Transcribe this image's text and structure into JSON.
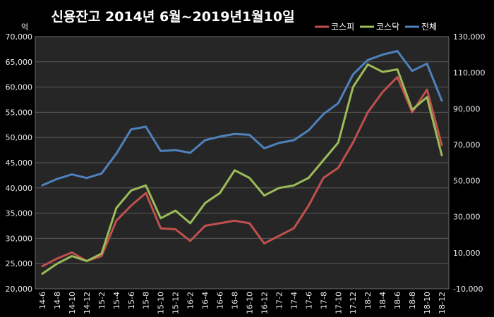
{
  "chart_data": {
    "type": "line",
    "title": "신용잔고 2014년 6월~2019년1월10일",
    "y_unit_label": "억",
    "left_axis": {
      "ylim": [
        20000,
        70000
      ],
      "ticks": [
        "20,000",
        "25,000",
        "30,000",
        "35,000",
        "40,000",
        "45,000",
        "50,000",
        "55,000",
        "60,000",
        "65,000",
        "70,000"
      ]
    },
    "right_axis": {
      "ylim": [
        -10000,
        130000
      ],
      "ticks": [
        "-10,000",
        "10,000",
        "30,000",
        "50,000",
        "70,000",
        "90,000",
        "110,000",
        "130,000"
      ]
    },
    "grid": true,
    "legend_position": "top-right",
    "categories": [
      "14-6",
      "14-8",
      "14-10",
      "14-12",
      "15-2",
      "15-4",
      "15-6",
      "15-8",
      "15-10",
      "15-12",
      "16-2",
      "16-4",
      "16-6",
      "16-8",
      "16-10",
      "16-12",
      "17-2",
      "17-4",
      "17-6",
      "17-8",
      "17-10",
      "17-12",
      "18-2",
      "18-4",
      "18-6",
      "18-8",
      "18-10",
      "18-12"
    ],
    "series": [
      {
        "name": "코스피",
        "axis": "left",
        "color": "#c0504d",
        "values": [
          24500,
          26000,
          27200,
          25500,
          26500,
          33500,
          36500,
          39000,
          32000,
          31800,
          29500,
          32500,
          33000,
          33500,
          33000,
          29000,
          30500,
          32000,
          36500,
          42000,
          44000,
          49000,
          55000,
          59000,
          62000,
          55000,
          59500,
          48500
        ]
      },
      {
        "name": "코스닥",
        "axis": "left",
        "color": "#9bbb59",
        "values": [
          23000,
          25000,
          26500,
          25500,
          27000,
          36000,
          39500,
          40500,
          34000,
          35500,
          33000,
          37000,
          39000,
          43500,
          42000,
          38500,
          40000,
          40500,
          42000,
          45500,
          49000,
          60000,
          64500,
          63000,
          63500,
          55500,
          58000,
          46500
        ]
      },
      {
        "name": "전체",
        "axis": "right",
        "color": "#4f81bd",
        "values": [
          47500,
          51000,
          53500,
          51500,
          54000,
          65000,
          78500,
          80000,
          66500,
          67000,
          65500,
          72500,
          74500,
          76000,
          75500,
          68000,
          71000,
          72500,
          78000,
          87000,
          93000,
          109000,
          117000,
          120000,
          122000,
          111000,
          115000,
          94500
        ]
      }
    ]
  }
}
